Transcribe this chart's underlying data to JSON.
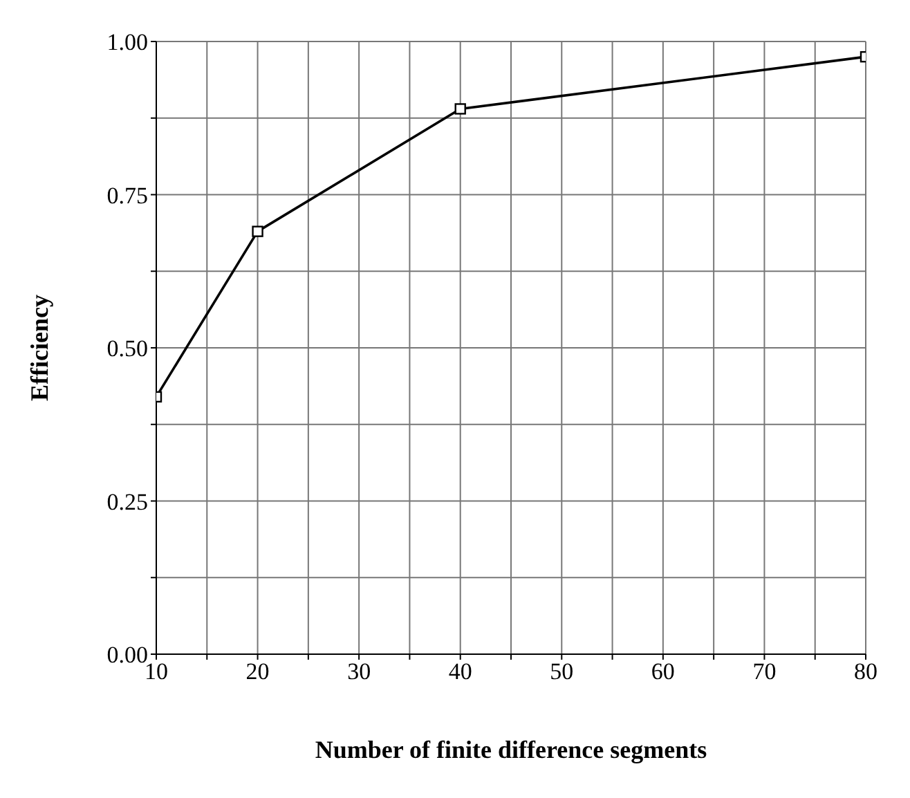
{
  "chart_data": {
    "type": "line",
    "xlabel": "Number of finite difference segments",
    "ylabel": "Efficiency",
    "x": [
      10,
      20,
      40,
      80
    ],
    "series": [
      {
        "color": "#000000",
        "values": [
          0.42,
          0.69,
          0.89,
          0.975
        ]
      }
    ],
    "xlim": [
      10,
      80
    ],
    "xticks": [
      10,
      {
        "value": 15,
        "label": null
      },
      20,
      {
        "value": 25,
        "label": null
      },
      30,
      {
        "value": 35,
        "label": null
      },
      40,
      {
        "value": 45,
        "label": null
      },
      50,
      {
        "value": 55,
        "label": null
      },
      60,
      {
        "value": 65,
        "label": null
      },
      70,
      {
        "value": 75,
        "label": null
      },
      80
    ],
    "ylim": [
      0,
      1
    ],
    "yticks": [
      {
        "value": 0,
        "label": "0.00"
      },
      {
        "value": 0.125,
        "label": null
      },
      {
        "value": 0.25,
        "label": "0.25"
      },
      {
        "value": 0.375,
        "label": null
      },
      {
        "value": 0.5,
        "label": "0.50"
      },
      {
        "value": 0.625,
        "label": null
      },
      {
        "value": 0.75,
        "label": "0.75"
      },
      {
        "value": 0.875,
        "label": null
      },
      {
        "value": 1,
        "label": "1.00"
      }
    ],
    "grid": true,
    "marker": "square",
    "line_style": "solid",
    "legend": false
  }
}
